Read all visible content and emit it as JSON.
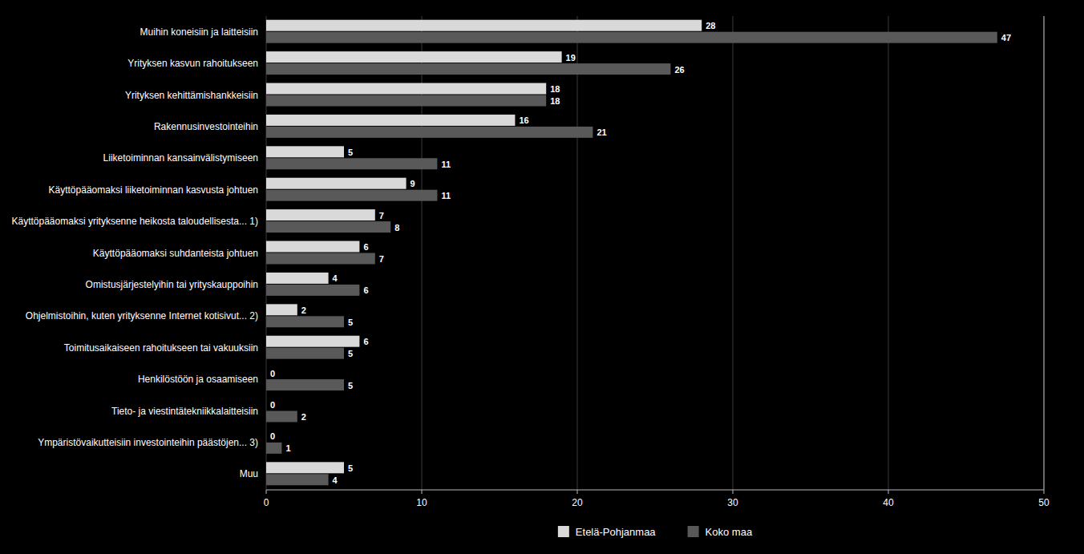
{
  "chart_data": {
    "type": "bar",
    "orientation": "horizontal",
    "categories": [
      "Muihin koneisiin ja laitteisiin",
      "Yrityksen kasvun rahoitukseen",
      "Yrityksen kehittämishankkeisiin",
      "Rakennusinvestointeihin",
      "Liiketoiminnan kansainvälistymiseen",
      "Käyttöpääomaksi liiketoiminnan kasvusta johtuen",
      "Käyttöpääomaksi yrityksenne heikosta taloudellisesta... 1)",
      "Käyttöpääomaksi suhdanteista johtuen",
      "Omistusjärjestelyihin tai yrityskauppoihin",
      "Ohjelmistoihin, kuten yrityksenne Internet kotisivut... 2)",
      "Toimitusaikaiseen rahoitukseen tai vakuuksiin",
      "Henkilöstöön ja osaamiseen",
      "Tieto- ja viestintätekniikkalaitteisiin",
      "Ympäristövaikutteisiin investointeihin päästöjen... 3)",
      "Muu"
    ],
    "series": [
      {
        "name": "Etelä-Pohjanmaa",
        "color": "#d9d9d9",
        "values": [
          28,
          19,
          18,
          16,
          5,
          9,
          7,
          6,
          4,
          2,
          6,
          0,
          0,
          0,
          5
        ]
      },
      {
        "name": "Koko maa",
        "color": "#595959",
        "values": [
          47,
          26,
          18,
          21,
          11,
          11,
          8,
          7,
          6,
          5,
          5,
          5,
          2,
          1,
          4
        ]
      }
    ],
    "xlim": [
      0,
      50
    ],
    "xticks": [
      0,
      10,
      20,
      30,
      40,
      50
    ],
    "grid": true,
    "legend": "bottom",
    "data_labels": true
  }
}
